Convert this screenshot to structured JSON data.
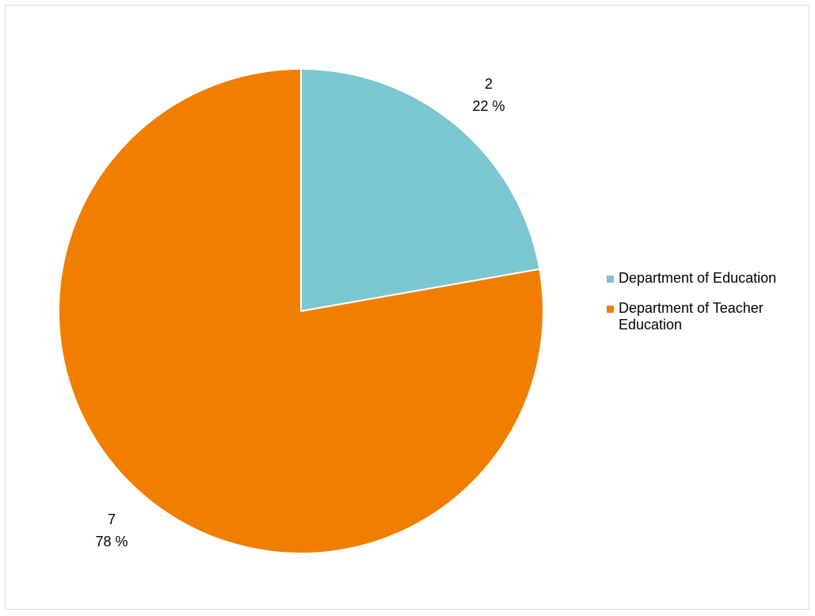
{
  "chart_data": {
    "type": "pie",
    "categories": [
      "Department of Education",
      "Department of Teacher Education"
    ],
    "values": [
      2,
      7
    ],
    "percent_labels": [
      "22 %",
      "78 %"
    ],
    "colors": [
      "#7ac7d0",
      "#f07f00"
    ],
    "start_angle_deg": 0,
    "direction": "clockwise",
    "legend_position": "right",
    "slice_border_color": "#ffffff"
  }
}
